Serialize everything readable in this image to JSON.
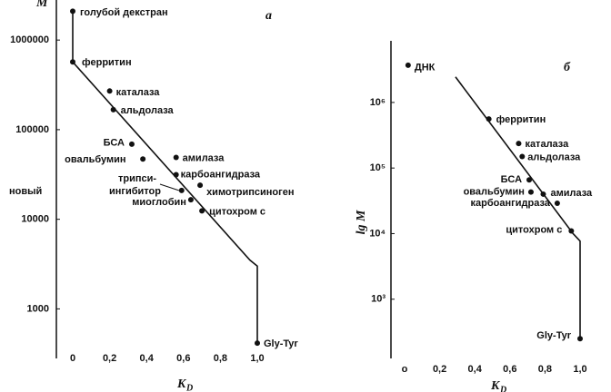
{
  "chart_data": [
    {
      "type": "scatter",
      "panel": "a",
      "ylabel": "M",
      "xlabel": "K",
      "xlabel_sub": "D",
      "log_y": true,
      "xlim": [
        0,
        1
      ],
      "ylim": [
        280,
        2800000
      ],
      "xticks": [
        {
          "value": 0,
          "label": "0"
        },
        {
          "value": 0.2,
          "label": "0,2"
        },
        {
          "value": 0.4,
          "label": "0,4"
        },
        {
          "value": 0.6,
          "label": "0,6"
        },
        {
          "value": 0.8,
          "label": "0,8"
        },
        {
          "value": 1.0,
          "label": "1,0"
        }
      ],
      "yticks": [
        1000,
        10000,
        100000,
        1000000
      ],
      "color": "#111111",
      "points": [
        {
          "label": "голубой декстран",
          "x": 0,
          "y": 2100000
        },
        {
          "label": "ферритин",
          "x": 0,
          "y": 570000
        },
        {
          "label": "каталаза",
          "x": 0.2,
          "y": 270000
        },
        {
          "label": "альдолаза",
          "x": 0.22,
          "y": 167000
        },
        {
          "label": "БСА",
          "x": 0.32,
          "y": 69000
        },
        {
          "label": "овальбумин",
          "x": 0.38,
          "y": 47000
        },
        {
          "label": "амилаза",
          "x": 0.56,
          "y": 49000
        },
        {
          "label": "карбоангидраза",
          "x": 0.56,
          "y": 31500
        },
        {
          "label": "химотрипсиноген",
          "x": 0.69,
          "y": 24000
        },
        {
          "label": [
            "трипси-",
            "новый",
            "ингибитор"
          ],
          "x": 0.59,
          "y": 21000
        },
        {
          "label": "миоглобин",
          "x": 0.64,
          "y": 16500
        },
        {
          "label": "цитохром с",
          "x": 0.7,
          "y": 12400
        },
        {
          "label": "Gly-Tyr",
          "x": 1.0,
          "y": 415
        }
      ],
      "line": {
        "x": [
          0,
          0,
          0.96,
          1.0,
          1.0
        ],
        "y": [
          2100000,
          570000,
          3500,
          3000,
          415
        ]
      }
    },
    {
      "type": "scatter",
      "panel": "б",
      "ylabel": "lg M",
      "xlabel": "K",
      "xlabel_sub": "D",
      "log_y": true,
      "xlim": [
        0,
        1
      ],
      "ylim": [
        125,
        8700000
      ],
      "xticks": [
        {
          "value": 0,
          "label": "о"
        },
        {
          "value": 0.2,
          "label": "0,2"
        },
        {
          "value": 0.4,
          "label": "0,4"
        },
        {
          "value": 0.6,
          "label": "0,6"
        },
        {
          "value": 0.8,
          "label": "0,8"
        },
        {
          "value": 1.0,
          "label": "1,0"
        }
      ],
      "yticks": [
        {
          "value": 1000,
          "label": "10³"
        },
        {
          "value": 10000,
          "label": "10⁴"
        },
        {
          "value": 100000,
          "label": "10⁵"
        },
        {
          "value": 1000000,
          "label": "10⁶"
        }
      ],
      "color": "#111111",
      "points": [
        {
          "label": "ДНК",
          "x": 0.02,
          "y": 3700000
        },
        {
          "label": "ферритин",
          "x": 0.48,
          "y": 560000
        },
        {
          "label": "каталаза",
          "x": 0.65,
          "y": 237000
        },
        {
          "label": "альдолаза",
          "x": 0.67,
          "y": 150000
        },
        {
          "label": "БСА",
          "x": 0.71,
          "y": 66000
        },
        {
          "label": "овальбумин",
          "x": 0.72,
          "y": 43000
        },
        {
          "label": "амилаза",
          "x": 0.79,
          "y": 40000
        },
        {
          "label": "карбоангидраза",
          "x": 0.87,
          "y": 29000
        },
        {
          "label": "цитохром с",
          "x": 0.95,
          "y": 11000
        },
        {
          "label": "Gly-Tyr",
          "x": 1.0,
          "y": 250
        }
      ],
      "line": {
        "x": [
          0.29,
          0.96,
          1.0,
          1.0
        ],
        "y": [
          2450000,
          10000,
          7700,
          250
        ]
      }
    }
  ]
}
